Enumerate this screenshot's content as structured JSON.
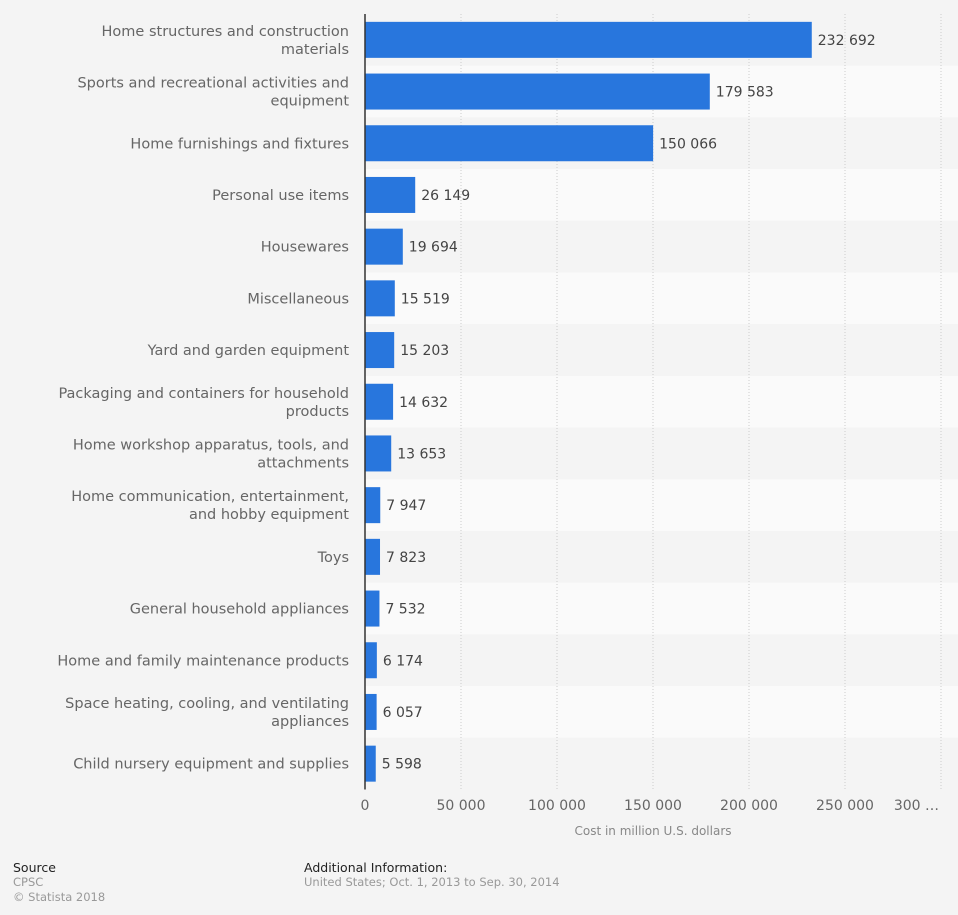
{
  "chart_data": {
    "type": "bar",
    "orientation": "horizontal",
    "title": "",
    "xlabel": "Cost in million U.S. dollars",
    "ylabel": "",
    "xlim": [
      0,
      300000
    ],
    "x_ticks": [
      0,
      50000,
      100000,
      150000,
      200000,
      250000,
      300000
    ],
    "x_tick_labels": [
      "0",
      "50 000",
      "100 000",
      "150 000",
      "200 000",
      "250 000",
      "300 …"
    ],
    "grid": "vertical dotted",
    "legend": "none",
    "bar_color": "#2876dd",
    "categories": [
      "Home structures and construction materials",
      "Sports and recreational activities and equipment",
      "Home furnishings and fixtures",
      "Personal use items",
      "Housewares",
      "Miscellaneous",
      "Yard and garden equipment",
      "Packaging and containers for household products",
      "Home workshop apparatus, tools, and attachments",
      "Home communication, entertainment, and hobby equipment",
      "Toys",
      "General household appliances",
      "Home and family maintenance products",
      "Space heating, cooling, and ventilating appliances",
      "Child nursery equipment and supplies"
    ],
    "category_lines": [
      [
        "Home structures and construction",
        "materials"
      ],
      [
        "Sports and recreational activities and",
        "equipment"
      ],
      [
        "Home furnishings and fixtures"
      ],
      [
        "Personal use items"
      ],
      [
        "Housewares"
      ],
      [
        "Miscellaneous"
      ],
      [
        "Yard and garden equipment"
      ],
      [
        "Packaging and containers for household",
        "products"
      ],
      [
        "Home workshop apparatus, tools, and",
        "attachments"
      ],
      [
        "Home communication, entertainment,",
        "and hobby equipment"
      ],
      [
        "Toys"
      ],
      [
        "General household appliances"
      ],
      [
        "Home and family maintenance products"
      ],
      [
        "Space heating, cooling, and ventilating",
        "appliances"
      ],
      [
        "Child nursery equipment and supplies"
      ]
    ],
    "values": [
      232692,
      179583,
      150066,
      26149,
      19694,
      15519,
      15203,
      14632,
      13653,
      7947,
      7823,
      7532,
      6174,
      6057,
      5598
    ],
    "value_labels": [
      "232 692",
      "179 583",
      "150 066",
      "26 149",
      "19 694",
      "15 519",
      "15 203",
      "14 632",
      "13 653",
      "7 947",
      "7 823",
      "7 532",
      "6 174",
      "6 057",
      "5 598"
    ]
  },
  "footer": {
    "source_heading": "Source",
    "source_name": "CPSC",
    "copyright": "© Statista 2018",
    "info_heading": "Additional Information:",
    "info_text": "United States; Oct. 1, 2013 to Sep. 30, 2014"
  }
}
